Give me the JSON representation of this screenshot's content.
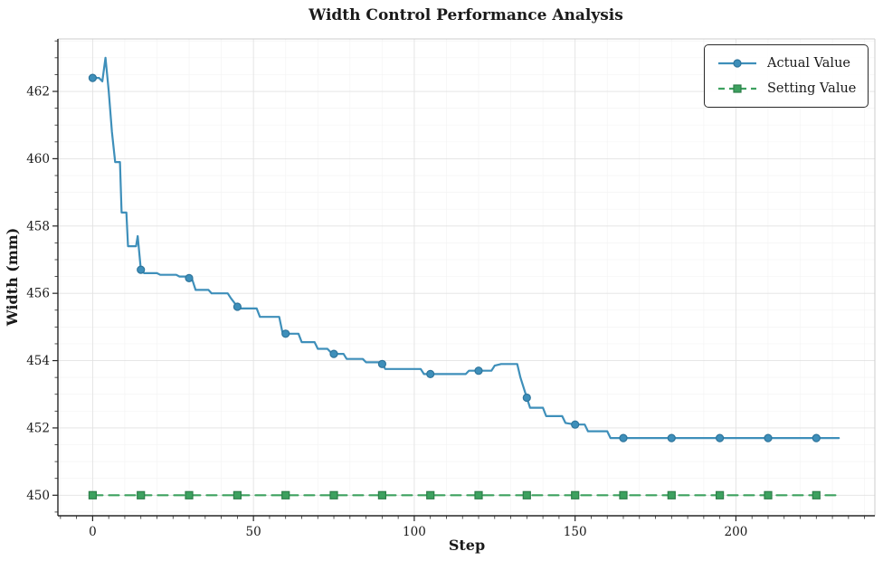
{
  "chart_data": {
    "type": "line",
    "title": "Width Control Performance Analysis",
    "xlabel": "Step",
    "ylabel": "Width (mm)",
    "xlim": [
      -10.8,
      243.2
    ],
    "ylim": [
      449.39,
      463.56
    ],
    "x_ticks": [
      0,
      50,
      100,
      150,
      200
    ],
    "y_ticks": [
      450,
      452,
      454,
      456,
      458,
      460,
      462
    ],
    "x_minor_tick_interval": 5,
    "x_minor_grid_interval": 10,
    "y_minor_interval": 0.5,
    "grid": "on (faint major + fainter minor)",
    "legend_position": "upper right",
    "series": [
      {
        "name": "Actual Value",
        "line_style": "solid",
        "marker": "circle",
        "marker_every": 15,
        "color": "#3e8fba",
        "marker_edge_color": "#2e759c",
        "points": [
          [
            0,
            462.4
          ],
          [
            2,
            462.4
          ],
          [
            3,
            462.3
          ],
          [
            4,
            463.0
          ],
          [
            5,
            462.0
          ],
          [
            6,
            460.8
          ],
          [
            7,
            459.9
          ],
          [
            8.5,
            459.9
          ],
          [
            9,
            458.4
          ],
          [
            10.5,
            458.4
          ],
          [
            11,
            457.4
          ],
          [
            13.5,
            457.4
          ],
          [
            14,
            457.7
          ],
          [
            15,
            456.7
          ],
          [
            16,
            456.6
          ],
          [
            20,
            456.6
          ],
          [
            21,
            456.55
          ],
          [
            26,
            456.55
          ],
          [
            27,
            456.5
          ],
          [
            29,
            456.5
          ],
          [
            30,
            456.45
          ],
          [
            31,
            456.4
          ],
          [
            32,
            456.1
          ],
          [
            36,
            456.1
          ],
          [
            37,
            456.0
          ],
          [
            42,
            456.0
          ],
          [
            43,
            455.85
          ],
          [
            45,
            455.6
          ],
          [
            46,
            455.55
          ],
          [
            51,
            455.55
          ],
          [
            52,
            455.3
          ],
          [
            58,
            455.3
          ],
          [
            59,
            454.85
          ],
          [
            60,
            454.8
          ],
          [
            64,
            454.8
          ],
          [
            65,
            454.55
          ],
          [
            69,
            454.55
          ],
          [
            70,
            454.35
          ],
          [
            73,
            454.35
          ],
          [
            74,
            454.25
          ],
          [
            75,
            454.2
          ],
          [
            78,
            454.2
          ],
          [
            79,
            454.05
          ],
          [
            84,
            454.05
          ],
          [
            85,
            453.95
          ],
          [
            89,
            453.95
          ],
          [
            90,
            453.9
          ],
          [
            91,
            453.75
          ],
          [
            102,
            453.75
          ],
          [
            103,
            453.6
          ],
          [
            116,
            453.6
          ],
          [
            117,
            453.7
          ],
          [
            124,
            453.7
          ],
          [
            125,
            453.85
          ],
          [
            127,
            453.9
          ],
          [
            132,
            453.9
          ],
          [
            133,
            453.5
          ],
          [
            135,
            452.9
          ],
          [
            136,
            452.6
          ],
          [
            140,
            452.6
          ],
          [
            141,
            452.35
          ],
          [
            146,
            452.35
          ],
          [
            147,
            452.15
          ],
          [
            150,
            452.1
          ],
          [
            153,
            452.1
          ],
          [
            154,
            451.9
          ],
          [
            160,
            451.9
          ],
          [
            161,
            451.7
          ],
          [
            232,
            451.7
          ]
        ],
        "marker_points": [
          [
            0,
            462.4
          ],
          [
            15,
            456.7
          ],
          [
            30,
            456.45
          ],
          [
            45,
            455.6
          ],
          [
            60,
            454.8
          ],
          [
            75,
            454.2
          ],
          [
            90,
            453.9
          ],
          [
            105,
            453.6
          ],
          [
            120,
            453.7
          ],
          [
            135,
            452.9
          ],
          [
            150,
            452.1
          ],
          [
            165,
            451.7
          ],
          [
            180,
            451.7
          ],
          [
            195,
            451.7
          ],
          [
            210,
            451.7
          ],
          [
            225,
            451.7
          ]
        ]
      },
      {
        "name": "Setting Value",
        "line_style": "dashed",
        "marker": "square",
        "marker_every": 15,
        "color": "#3da15f",
        "marker_edge_color": "#2d7f4a",
        "points": [
          [
            0,
            450.0
          ],
          [
            232,
            450.0
          ]
        ],
        "marker_points": [
          [
            0,
            450.0
          ],
          [
            15,
            450.0
          ],
          [
            30,
            450.0
          ],
          [
            45,
            450.0
          ],
          [
            60,
            450.0
          ],
          [
            75,
            450.0
          ],
          [
            90,
            450.0
          ],
          [
            105,
            450.0
          ],
          [
            120,
            450.0
          ],
          [
            135,
            450.0
          ],
          [
            150,
            450.0
          ],
          [
            165,
            450.0
          ],
          [
            180,
            450.0
          ],
          [
            195,
            450.0
          ],
          [
            210,
            450.0
          ],
          [
            225,
            450.0
          ]
        ]
      }
    ]
  },
  "axes": {
    "spine_color": "#262626",
    "light_spine_color": "#cccccc",
    "grid_major_color": "#e2e2e2",
    "grid_minor_color": "#f4f4f4",
    "tick_color": "#262626",
    "tick_label_color": "#1a1a1a"
  }
}
